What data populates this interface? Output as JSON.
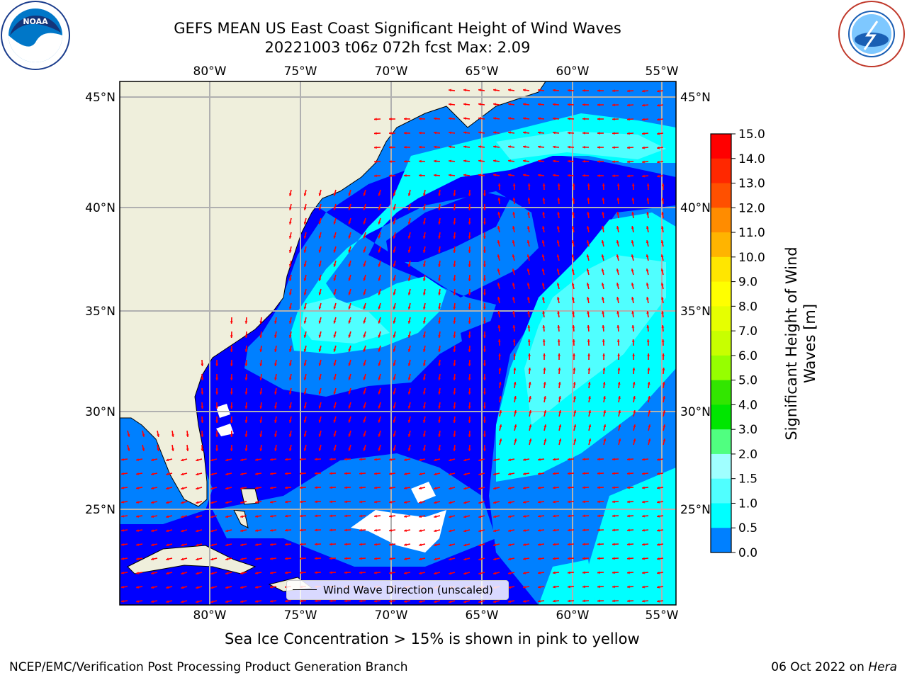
{
  "title_line1": "GEFS MEAN US East Coast Significant Height of Wind Waves",
  "title_line2": "20221003 t06z 072h fcst   Max: 2.09",
  "lon_labels": [
    "80°W",
    "75°W",
    "70°W",
    "65°W",
    "60°W",
    "55°W"
  ],
  "lat_labels": [
    "45°N",
    "40°N",
    "35°N",
    "30°N",
    "25°N"
  ],
  "legend_label": "Wind Wave Direction (unscaled)",
  "colorbar": {
    "title_line1": "Significant Height of Wind",
    "title_line2": "Waves [m]",
    "ticks": [
      "15.0",
      "14.0",
      "13.0",
      "12.0",
      "11.0",
      "10.0",
      "9.0",
      "8.0",
      "7.0",
      "6.0",
      "5.0",
      "4.0",
      "3.0",
      "2.0",
      "1.5",
      "1.0",
      "0.5",
      "0.0"
    ],
    "colors": [
      "#ff0000",
      "#ff2800",
      "#ff5000",
      "#ff8c00",
      "#ffb400",
      "#ffe600",
      "#ffff00",
      "#e6ff00",
      "#c8ff00",
      "#96ff00",
      "#32e600",
      "#00e600",
      "#50ff80",
      "#a0ffff",
      "#50ffff",
      "#00ffff",
      "#0080ff",
      "#0000ff"
    ]
  },
  "sea_ice_note": "Sea Ice Concentration > 15% is shown in pink to yellow",
  "footer_left": "NCEP/EMC/Verification Post Processing Product Generation Branch",
  "footer_date": "06 Oct 2022 on ",
  "footer_machine": "Hera",
  "logos": {
    "left": "NOAA",
    "right": "NATIONAL WEATHER SERVICE"
  },
  "map_colors": {
    "land": "#efefdc",
    "wave_0_0.5": "#0000ff",
    "wave_0.5_1.0": "#0080ff",
    "wave_1.0_1.5": "#00ffff",
    "wave_1.5_2.0": "#50ffff",
    "arrow": "#ff0000"
  }
}
